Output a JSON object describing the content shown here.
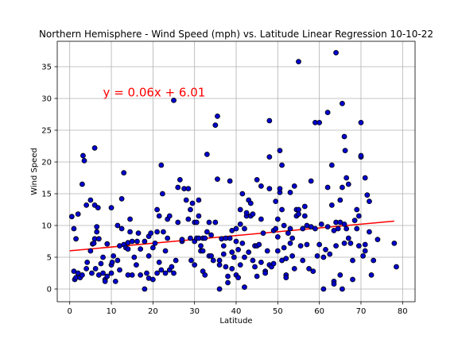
{
  "chart_data": {
    "type": "scatter",
    "title": "Northern Hemisphere - Wind Speed (mph) vs. Latitude Linear Regression 10-10-22",
    "xlabel": "Latitude",
    "ylabel": "Wind Speed",
    "xlim": [
      -3,
      83
    ],
    "ylim": [
      -2,
      39
    ],
    "xticks": [
      0,
      10,
      20,
      30,
      40,
      50,
      60,
      70,
      80
    ],
    "yticks": [
      0,
      5,
      10,
      15,
      20,
      25,
      30,
      35
    ],
    "grid": true,
    "point_color": "#0000cd",
    "point_edge_color": "#000000",
    "regression": {
      "equation": "y = 0.06x + 6.01",
      "slope": 0.06,
      "intercept": 6.01,
      "x_range": [
        0,
        78
      ],
      "line_color": "#ff0000",
      "label_color": "#ff0000",
      "label_x": 8,
      "label_y": 30.3
    },
    "series": [
      {
        "points": [
          [
            0.5,
            11.4
          ],
          [
            1,
            9.5
          ],
          [
            1,
            2.8
          ],
          [
            1.2,
            1.5
          ],
          [
            1.5,
            7.9
          ],
          [
            1.5,
            1.8
          ],
          [
            2,
            2.5
          ],
          [
            2,
            11.8
          ],
          [
            2.5,
            1.8
          ],
          [
            3,
            16.5
          ],
          [
            3,
            2.2
          ],
          [
            3.2,
            21
          ],
          [
            3.5,
            20.2
          ],
          [
            4,
            3.2
          ],
          [
            4,
            13.2
          ],
          [
            4.2,
            4.2
          ],
          [
            5,
            14
          ],
          [
            5,
            6
          ],
          [
            5.3,
            2.5
          ],
          [
            5.5,
            7.1
          ],
          [
            5.8,
            7.2
          ],
          [
            6,
            22.2
          ],
          [
            6,
            13.2
          ],
          [
            6,
            7.9
          ],
          [
            6.2,
            3.2
          ],
          [
            6.5,
            9.8
          ],
          [
            6.5,
            9
          ],
          [
            6.8,
            12.8
          ],
          [
            7,
            7.9
          ],
          [
            7,
            2.2
          ],
          [
            7.5,
            4
          ],
          [
            8,
            5
          ],
          [
            8,
            2.5
          ],
          [
            8.5,
            1.5
          ],
          [
            8.5,
            1.2
          ],
          [
            9,
            2
          ],
          [
            9,
            7.1
          ],
          [
            10,
            12.8
          ],
          [
            10,
            3.8
          ],
          [
            10,
            2.5
          ],
          [
            10.2,
            4.2
          ],
          [
            10.5,
            5.2
          ],
          [
            11,
            1.2
          ],
          [
            11.5,
            4.5
          ],
          [
            11.5,
            10
          ],
          [
            12,
            3
          ],
          [
            12,
            6.8
          ],
          [
            12.5,
            9.5
          ],
          [
            12.5,
            14.2
          ],
          [
            13,
            18.3
          ],
          [
            13,
            7
          ],
          [
            13.5,
            6.5
          ],
          [
            14,
            7.3
          ],
          [
            14,
            2.2
          ],
          [
            14,
            6.3
          ],
          [
            14.5,
            11
          ],
          [
            14.5,
            9
          ],
          [
            15,
            7.5
          ],
          [
            15,
            2.2
          ],
          [
            15.5,
            5
          ],
          [
            16,
            3.8
          ],
          [
            16.2,
            7.5
          ],
          [
            16.5,
            8.8
          ],
          [
            17,
            2.2
          ],
          [
            17,
            6.3
          ],
          [
            18,
            7.5
          ],
          [
            18,
            0
          ],
          [
            18.5,
            2.5
          ],
          [
            19,
            8.3
          ],
          [
            19,
            5.2
          ],
          [
            19,
            1.7
          ],
          [
            19.5,
            8.8
          ],
          [
            20,
            1.5
          ],
          [
            20,
            6.5
          ],
          [
            20.5,
            7.2
          ],
          [
            21,
            9
          ],
          [
            21,
            12.5
          ],
          [
            21,
            2.5
          ],
          [
            21.5,
            4.2
          ],
          [
            21.5,
            11.5
          ],
          [
            22,
            3
          ],
          [
            22,
            19.5
          ],
          [
            22.3,
            15
          ],
          [
            22.5,
            9
          ],
          [
            23,
            2.5
          ],
          [
            23,
            6
          ],
          [
            23.5,
            8
          ],
          [
            23.5,
            11
          ],
          [
            24,
            11.5
          ],
          [
            24,
            3
          ],
          [
            24.5,
            3.5
          ],
          [
            25,
            29.7
          ],
          [
            25,
            2.5
          ],
          [
            25.5,
            4.5
          ],
          [
            26,
            16
          ],
          [
            26,
            10.5
          ],
          [
            26.5,
            17.2
          ],
          [
            27,
            7.5
          ],
          [
            27,
            7.8
          ],
          [
            27.5,
            15.8
          ],
          [
            28,
            14
          ],
          [
            28.5,
            15.8
          ],
          [
            28.5,
            11
          ],
          [
            29,
            8
          ],
          [
            29,
            12.5
          ],
          [
            29.2,
            4.5
          ],
          [
            29.5,
            13.5
          ],
          [
            30,
            7.5
          ],
          [
            30,
            10.5
          ],
          [
            30,
            3.8
          ],
          [
            30.5,
            8
          ],
          [
            30.5,
            10.5
          ],
          [
            31,
            14
          ],
          [
            31,
            11.5
          ],
          [
            31,
            8
          ],
          [
            31.5,
            6.8
          ],
          [
            31.5,
            6
          ],
          [
            32,
            2.8
          ],
          [
            32,
            8
          ],
          [
            32,
            6
          ],
          [
            32.5,
            2.2
          ],
          [
            32.5,
            8
          ],
          [
            33,
            21.2
          ],
          [
            33,
            9
          ],
          [
            33.5,
            10.5
          ],
          [
            33.5,
            5.2
          ],
          [
            34,
            8.5
          ],
          [
            34,
            5.2
          ],
          [
            34.5,
            4.5
          ],
          [
            35,
            25.8
          ],
          [
            35,
            10.5
          ],
          [
            35.5,
            17.3
          ],
          [
            35.5,
            27.2
          ],
          [
            36,
            3.8
          ],
          [
            36,
            4.5
          ],
          [
            36,
            0
          ],
          [
            36.5,
            7.9
          ],
          [
            37,
            6.8
          ],
          [
            37,
            5.5
          ],
          [
            37.5,
            3.5
          ],
          [
            37.5,
            8
          ],
          [
            38,
            1
          ],
          [
            38,
            2
          ],
          [
            38.5,
            17
          ],
          [
            38.5,
            8
          ],
          [
            39,
            3.2
          ],
          [
            39,
            5.8
          ],
          [
            39,
            9.2
          ],
          [
            39.5,
            5
          ],
          [
            40,
            2.2
          ],
          [
            40,
            9.5
          ],
          [
            40,
            7.5
          ],
          [
            40.5,
            1.8
          ],
          [
            40.5,
            6.2
          ],
          [
            41,
            12.5
          ],
          [
            41,
            10.2
          ],
          [
            41,
            3.8
          ],
          [
            41.5,
            7.2
          ],
          [
            41.5,
            15
          ],
          [
            42,
            9.5
          ],
          [
            42,
            5
          ],
          [
            42,
            0.3
          ],
          [
            42.5,
            11.5
          ],
          [
            42.5,
            12
          ],
          [
            43,
            5.8
          ],
          [
            43,
            14
          ],
          [
            43.5,
            13.5
          ],
          [
            43.5,
            11.5
          ],
          [
            44,
            11.8
          ],
          [
            44,
            4.5
          ],
          [
            44.5,
            3.5
          ],
          [
            44.5,
            6.8
          ],
          [
            45,
            17.2
          ],
          [
            45,
            6.8
          ],
          [
            45,
            2
          ],
          [
            45.5,
            7
          ],
          [
            46,
            4.2
          ],
          [
            46,
            16.2
          ],
          [
            46,
            11
          ],
          [
            46.5,
            8.8
          ],
          [
            47,
            2.8
          ],
          [
            47,
            2.5
          ],
          [
            47.5,
            6
          ],
          [
            48,
            3.8
          ],
          [
            48,
            15.8
          ],
          [
            48,
            26.5
          ],
          [
            48,
            20.8
          ],
          [
            48.5,
            3.5
          ],
          [
            49,
            9.2
          ],
          [
            49,
            4
          ],
          [
            49.5,
            13.8
          ],
          [
            49.5,
            9.5
          ],
          [
            50,
            11
          ],
          [
            50,
            6
          ],
          [
            50,
            8.2
          ],
          [
            50.5,
            15.2
          ],
          [
            50.5,
            21.8
          ],
          [
            50.5,
            15.8
          ],
          [
            51,
            12.5
          ],
          [
            51,
            19.5
          ],
          [
            51,
            4.5
          ],
          [
            51.5,
            10
          ],
          [
            51.5,
            6.5
          ],
          [
            52,
            2.2
          ],
          [
            52,
            4.8
          ],
          [
            52,
            1.8
          ],
          [
            52.5,
            8.8
          ],
          [
            53,
            7.2
          ],
          [
            53,
            15.2
          ],
          [
            53,
            9.5
          ],
          [
            53.5,
            8
          ],
          [
            53.5,
            5.2
          ],
          [
            54,
            3.2
          ],
          [
            54,
            16.2
          ],
          [
            54.5,
            11.5
          ],
          [
            54.5,
            12.5
          ],
          [
            55,
            35.8
          ],
          [
            55,
            11.8
          ],
          [
            55,
            12.5
          ],
          [
            55.5,
            6.8
          ],
          [
            56,
            9.5
          ],
          [
            56,
            4.5
          ],
          [
            56.5,
            11.5
          ],
          [
            56.5,
            13
          ],
          [
            57,
            7
          ],
          [
            57,
            10
          ],
          [
            57.5,
            3.2
          ],
          [
            58,
            9.8
          ],
          [
            58,
            17
          ],
          [
            58.5,
            2.8
          ],
          [
            59,
            26.2
          ],
          [
            59,
            9.5
          ],
          [
            59.5,
            5.2
          ],
          [
            60,
            26.2
          ],
          [
            60,
            7
          ],
          [
            60.5,
            10.2
          ],
          [
            61,
            0
          ],
          [
            61,
            5
          ],
          [
            61.5,
            6.2
          ],
          [
            62,
            27.8
          ],
          [
            62,
            16
          ],
          [
            62,
            9.8
          ],
          [
            62.5,
            5.5
          ],
          [
            63,
            13.2
          ],
          [
            63,
            19.5
          ],
          [
            63.5,
            1.2
          ],
          [
            63.5,
            0.8
          ],
          [
            63.5,
            9.2
          ],
          [
            64,
            37.2
          ],
          [
            64,
            10.5
          ],
          [
            64,
            6.8
          ],
          [
            64.5,
            9.5
          ],
          [
            65,
            2.2
          ],
          [
            65,
            10.5
          ],
          [
            65,
            14
          ],
          [
            65.5,
            29.2
          ],
          [
            65.5,
            0
          ],
          [
            65.5,
            16
          ],
          [
            66,
            10.2
          ],
          [
            66,
            7.2
          ],
          [
            66,
            24
          ],
          [
            66.2,
            21.8
          ],
          [
            66.5,
            17.5
          ],
          [
            66.5,
            9.5
          ],
          [
            67,
            8
          ],
          [
            67,
            16.5
          ],
          [
            67.5,
            7.2
          ],
          [
            68,
            1.5
          ],
          [
            68,
            4.5
          ],
          [
            68.5,
            10.8
          ],
          [
            69,
            12.5
          ],
          [
            69,
            9.5
          ],
          [
            69.5,
            6.8
          ],
          [
            69.5,
            11.5
          ],
          [
            70,
            20.8
          ],
          [
            70,
            21
          ],
          [
            70,
            26.2
          ],
          [
            70.5,
            5.2
          ],
          [
            71,
            17.5
          ],
          [
            71,
            7
          ],
          [
            71,
            6
          ],
          [
            71.5,
            14.8
          ],
          [
            72,
            9
          ],
          [
            72,
            13.8
          ],
          [
            72.5,
            2.2
          ],
          [
            73,
            4.5
          ],
          [
            74,
            7.8
          ],
          [
            78,
            7.2
          ],
          [
            78.5,
            3.5
          ]
        ]
      }
    ]
  }
}
